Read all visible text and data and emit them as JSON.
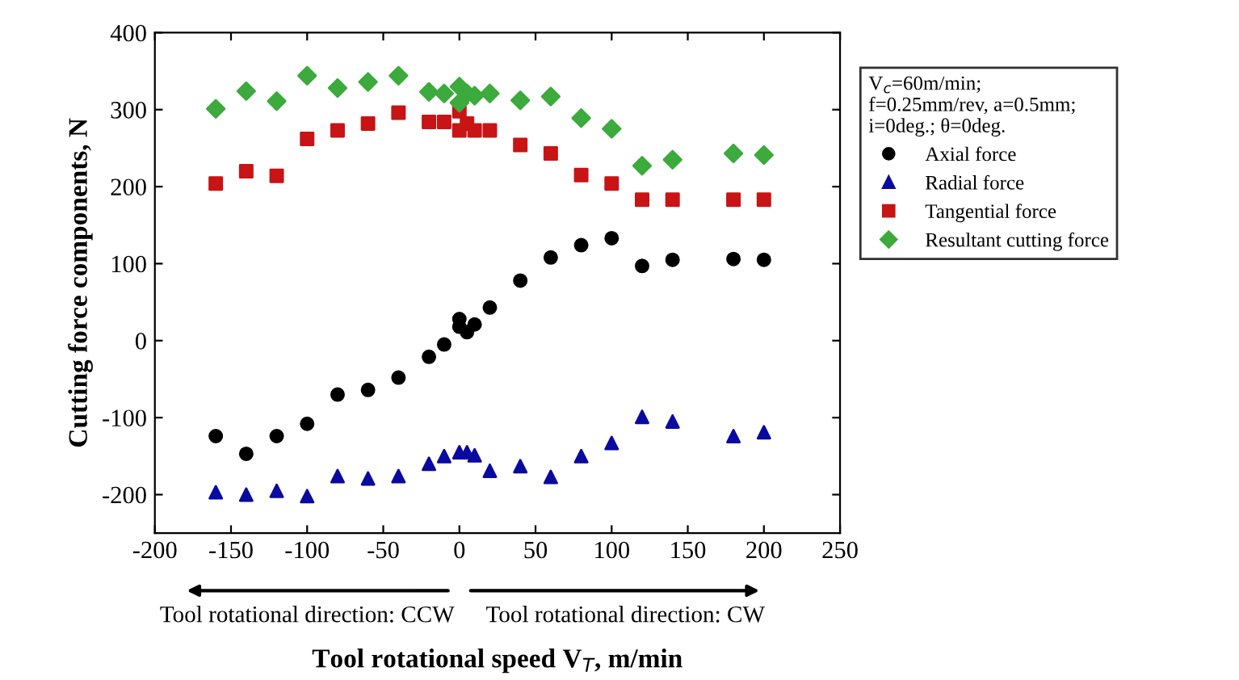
{
  "chart_data": {
    "type": "scatter",
    "xlabel": "Tool rotational speed V$_{T}$, m/min",
    "ylabel": "Cutting force components, N",
    "legend_title": "V$_{c}$=60m/min;\nf=0.25mm/rev, a=0.5mm;\ni=0deg.; θ=0deg.",
    "annotations": [
      "Tool rotational direction: CCW",
      "Tool rotational direction: CW"
    ],
    "x": [
      -160,
      -140,
      -120,
      -100,
      -80,
      -60,
      -40,
      -20,
      -10,
      0,
      0,
      5,
      10,
      20,
      40,
      60,
      80,
      100,
      120,
      140,
      180,
      200
    ],
    "series": [
      {
        "name": "Axial force",
        "color": "#000000",
        "marker": "circle",
        "values": [
          -124,
          -147,
          -124,
          -108,
          -70,
          -64,
          -48,
          -21,
          -5,
          28,
          18,
          11,
          21,
          43,
          78,
          108,
          124,
          133,
          97,
          105,
          106,
          105
        ]
      },
      {
        "name": "Radial force",
        "color": "#0a0aa0",
        "marker": "triangle",
        "values": [
          -197,
          -200,
          -195,
          -202,
          -176,
          -179,
          -176,
          -160,
          -150,
          -145,
          null,
          -145,
          -149,
          -169,
          -163,
          -177,
          -150,
          -133,
          -99,
          -105,
          -124,
          -119
        ]
      },
      {
        "name": "Tangential force",
        "color": "#c81414",
        "marker": "square",
        "values": [
          204,
          220,
          214,
          262,
          273,
          282,
          296,
          284,
          284,
          298,
          273,
          282,
          273,
          273,
          254,
          243,
          215,
          204,
          183,
          183,
          183,
          183
        ]
      },
      {
        "name": "Resultant cutting force",
        "color": "#3caa3c",
        "marker": "diamond",
        "values": [
          301,
          324,
          311,
          344,
          328,
          336,
          344,
          323,
          321,
          330,
          309,
          321,
          318,
          321,
          312,
          317,
          289,
          275,
          227,
          235,
          243,
          241
        ]
      }
    ],
    "xlim": [
      -200,
      250
    ],
    "xticks": [
      -200,
      -150,
      -100,
      -50,
      0,
      50,
      100,
      150,
      200,
      250
    ],
    "ylim": [
      -250,
      400
    ],
    "yticks": [
      -200,
      -100,
      0,
      100,
      200,
      300,
      400
    ],
    "grid": false,
    "legend": "right"
  }
}
